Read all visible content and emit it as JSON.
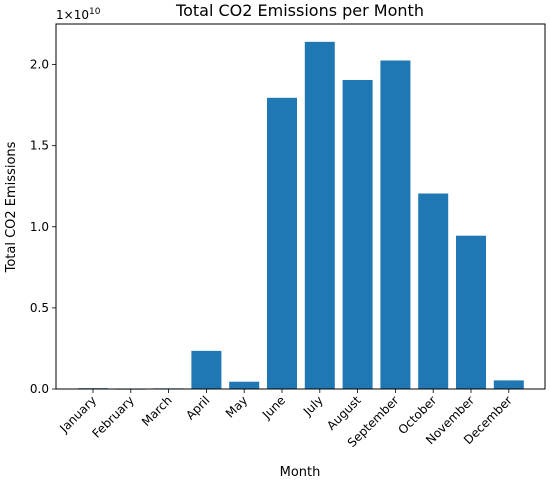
{
  "chart_data": {
    "type": "bar",
    "title": "Total CO2 Emissions per Month",
    "xlabel": "Month",
    "ylabel": "Total CO2 Emissions",
    "y_offset_base": "1×10",
    "y_offset_exponent": "10",
    "y_scale": 10000000000,
    "ylim": [
      0,
      22500000000
    ],
    "yticks": [
      0,
      5000000000,
      10000000000,
      15000000000,
      20000000000
    ],
    "ytick_labels": [
      "0.0",
      "0.5",
      "1.0",
      "1.5",
      "2.0"
    ],
    "grid": false,
    "bar_color": "#1f77b4",
    "categories": [
      "January",
      "February",
      "March",
      "April",
      "May",
      "June",
      "July",
      "August",
      "September",
      "October",
      "November",
      "December"
    ],
    "values": [
      50000000,
      10000000,
      40000000,
      2350000000,
      450000000,
      17950000000,
      21400000000,
      19050000000,
      20250000000,
      12050000000,
      9450000000,
      530000000
    ]
  }
}
